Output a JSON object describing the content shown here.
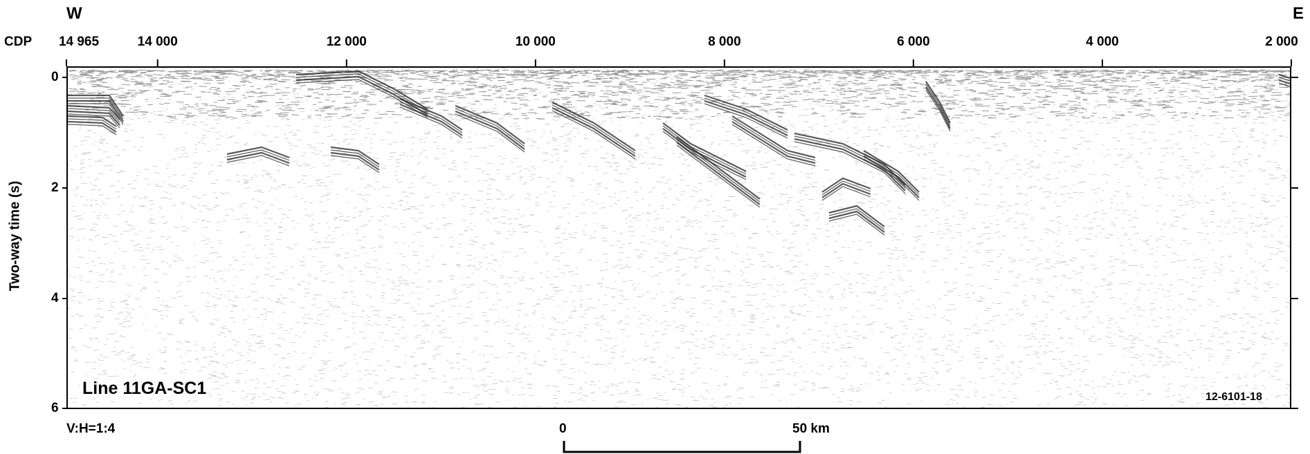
{
  "header": {
    "west": "W",
    "east": "E",
    "cdp_label": "CDP"
  },
  "cdp_ticks": [
    {
      "label": "14 965",
      "cdp": 14965
    },
    {
      "label": "14 000",
      "cdp": 14000
    },
    {
      "label": "12 000",
      "cdp": 12000
    },
    {
      "label": "10 000",
      "cdp": 10000
    },
    {
      "label": "8 000",
      "cdp": 8000
    },
    {
      "label": "6 000",
      "cdp": 6000
    },
    {
      "label": "4 000",
      "cdp": 4000
    },
    {
      "label": "2 000",
      "cdp": 2000
    }
  ],
  "time_axis": {
    "label": "Two-way time (s)",
    "ticks": [
      "0",
      "2",
      "4",
      "6"
    ]
  },
  "line_name": "Line 11GA-SC1",
  "figure_id": "12-6101-18",
  "footer": {
    "vertical_exaggeration": "V:H=1:4"
  },
  "scale_bar": {
    "start_label": "0",
    "end_label": "50 km"
  },
  "colors": {
    "ink": "#000000",
    "background": "#ffffff"
  }
}
